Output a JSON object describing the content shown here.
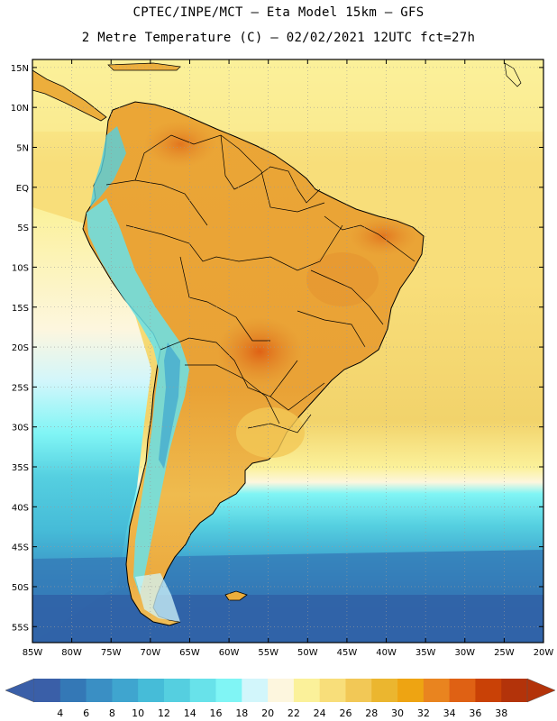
{
  "header": {
    "line1": "CPTEC/INPE/MCT –  Eta Model 15km – GFS",
    "line2": "2 Metre Temperature (C) – 02/02/2021 12UTC fct=27h"
  },
  "map": {
    "lat_labels": [
      "15N",
      "10N",
      "5N",
      "EQ",
      "5S",
      "10S",
      "15S",
      "20S",
      "25S",
      "30S",
      "35S",
      "40S",
      "45S",
      "50S",
      "55S"
    ],
    "lon_labels": [
      "85W",
      "80W",
      "75W",
      "70W",
      "65W",
      "60W",
      "55W",
      "50W",
      "45W",
      "40W",
      "35W",
      "30W",
      "25W",
      "20W"
    ],
    "lon_range": [
      -85,
      -20
    ],
    "lat_range": [
      -57,
      16
    ]
  },
  "colorbar": {
    "labels": [
      "4",
      "6",
      "8",
      "10",
      "12",
      "14",
      "16",
      "18",
      "20",
      "22",
      "24",
      "26",
      "28",
      "30",
      "32",
      "34",
      "36",
      "38"
    ],
    "colors": [
      "#3a5fa8",
      "#3478b6",
      "#3a8fc4",
      "#3fa5cf",
      "#46bcd8",
      "#55cfe0",
      "#68e2ea",
      "#80f5f5",
      "#d2f6fb",
      "#fdf6de",
      "#fbf19a",
      "#f8de7a",
      "#f2c856",
      "#ebb62f",
      "#eea412",
      "#e9841f",
      "#df6114",
      "#c94106",
      "#b3330a"
    ],
    "left_end_color": "#3a5fa8",
    "right_end_color": "#b3330a"
  },
  "colors": {
    "land_warm": "#ecae3c",
    "land_hot": "#e18a2a",
    "andes_cold": "#68e2ea",
    "ocean_tropical": "#f8de7a",
    "ocean_south": "#3478b6",
    "coastline": "#000000"
  }
}
